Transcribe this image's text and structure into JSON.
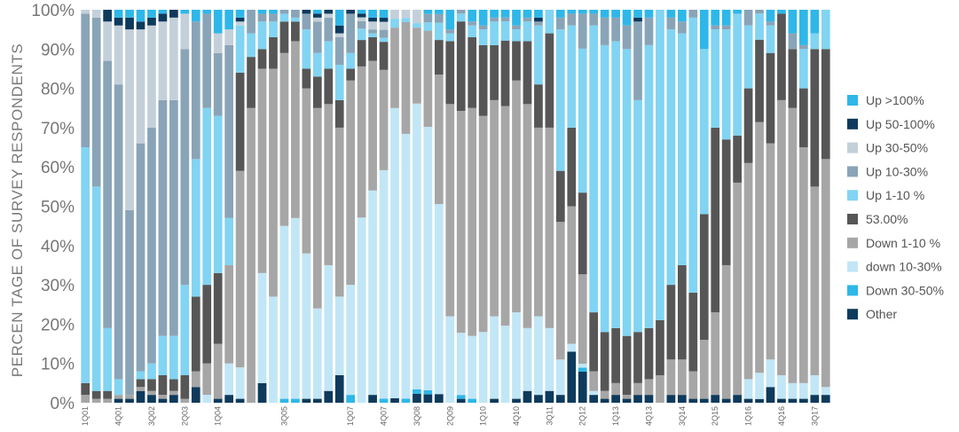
{
  "chart_data": {
    "type": "bar",
    "stacked": true,
    "normalized": true,
    "ylabel": "PERCEN TAGE OF SURVEY RESPONDENTS",
    "ylim": [
      0,
      100
    ],
    "y_ticks": [
      "0%",
      "10%",
      "20%",
      "30%",
      "40%",
      "50%",
      "60%",
      "70%",
      "80%",
      "90%",
      "100%"
    ],
    "legend_position": "right",
    "categories": [
      "1Q01",
      "2Q01",
      "3Q01",
      "4Q01",
      "1Q02",
      "2Q02",
      "3Q02",
      "4Q02",
      "1Q03",
      "2Q03",
      "3Q03",
      "4Q03",
      "1Q04",
      "2Q04",
      "3Q04",
      "4Q04",
      "1Q05",
      "2Q05",
      "3Q05",
      "4Q05",
      "1Q06",
      "2Q06",
      "3Q06",
      "4Q06",
      "1Q07",
      "2Q07",
      "3Q07",
      "4Q07",
      "1Q08",
      "2Q08",
      "3Q08",
      "4Q08",
      "1Q09",
      "2Q09",
      "3Q09",
      "4Q09",
      "1Q10",
      "2Q10",
      "3Q10",
      "4Q10",
      "1Q11",
      "2Q11",
      "3Q11",
      "4Q11",
      "1Q12",
      "2Q12",
      "3Q12",
      "4Q12",
      "1Q13",
      "2Q13",
      "3Q13",
      "4Q13",
      "1Q14",
      "2Q14",
      "3Q14",
      "4Q14",
      "1Q15",
      "2Q15",
      "3Q15",
      "4Q15",
      "1Q16",
      "2Q16",
      "3Q16",
      "4Q16",
      "1Q17",
      "2Q17",
      "3Q17",
      "4Q17"
    ],
    "x_tick_labels": [
      "1Q01",
      "4Q01",
      "3Q02",
      "2Q03",
      "1Q04",
      "3Q05",
      "1Q07",
      "4Q07",
      "3Q08",
      "2Q09",
      "1Q10",
      "4Q10",
      "3Q11",
      "2Q12",
      "1Q13",
      "4Q13",
      "3Q14",
      "2Q15",
      "1Q16",
      "4Q16",
      "3Q17"
    ],
    "series": [
      {
        "name": "Other",
        "color": "#0e3a5c",
        "values": [
          0,
          0,
          0,
          1,
          1,
          3,
          2,
          1,
          2,
          0,
          4,
          0,
          1,
          2,
          1,
          0,
          5,
          0,
          0,
          0,
          1,
          1,
          3,
          7,
          0,
          0,
          2,
          0,
          1,
          0,
          2,
          2,
          2,
          0,
          1,
          0,
          0,
          1,
          0,
          1,
          3,
          2,
          3,
          2,
          13,
          8,
          2,
          1,
          2,
          1,
          2,
          2,
          0,
          2,
          2,
          1,
          1,
          2,
          1,
          2,
          1,
          1,
          4,
          1,
          1,
          1,
          2,
          2
        ]
      },
      {
        "name": "Down 30-50%",
        "color": "#2eb7e8",
        "values": [
          0,
          0,
          0,
          0,
          0,
          0,
          0,
          0,
          0,
          0,
          0,
          0,
          0,
          0,
          0,
          0,
          0,
          0,
          1,
          1,
          0,
          0,
          0,
          0,
          2,
          0,
          0,
          1,
          0,
          1,
          1,
          1,
          0,
          0,
          1,
          1,
          0,
          0,
          0,
          0,
          0,
          0,
          0,
          0,
          0,
          1,
          0,
          0,
          0,
          0,
          0,
          0,
          0,
          0,
          0,
          0,
          0,
          0,
          0,
          0,
          0,
          0,
          0,
          0,
          0,
          0,
          0,
          0
        ]
      },
      {
        "name": "down 10-30%",
        "color": "#c1e6f6",
        "values": [
          0,
          0,
          0,
          0,
          0,
          0,
          0,
          0,
          0,
          0,
          0,
          2,
          0,
          8,
          8,
          0,
          28,
          27,
          44,
          46,
          37,
          23,
          32,
          20,
          28,
          49,
          52,
          57,
          65,
          64,
          64,
          63,
          44,
          22,
          16,
          16,
          18,
          21,
          20,
          22,
          16,
          20,
          16,
          9,
          2,
          1,
          1,
          0,
          0,
          0,
          0,
          0,
          0,
          0,
          0,
          0,
          0,
          0,
          0,
          0,
          5,
          7,
          7,
          6,
          4,
          4,
          5,
          2
        ]
      },
      {
        "name": "Down 1-10 %",
        "color": "#a6a6a6",
        "values": [
          2,
          1,
          1,
          1,
          1,
          1,
          1,
          1,
          1,
          1,
          4,
          8,
          14,
          25,
          50,
          75,
          52,
          58,
          44,
          45,
          42,
          51,
          41,
          43,
          52,
          40,
          33,
          25,
          18,
          27,
          17,
          23,
          30,
          54,
          57,
          58,
          55,
          55,
          57,
          59,
          57,
          48,
          51,
          35,
          35,
          23,
          5,
          2,
          3,
          1,
          3,
          4,
          7,
          9,
          9,
          7,
          15,
          21,
          34,
          54,
          55,
          67,
          55,
          70,
          70,
          60,
          48,
          58
        ]
      },
      {
        "name": "53.00%",
        "color": "#565656",
        "values": [
          3,
          2,
          2,
          0,
          0,
          2,
          3,
          5,
          3,
          6,
          19,
          20,
          18,
          0,
          25,
          13,
          5,
          8,
          8,
          5,
          5,
          8,
          9,
          7,
          3,
          7,
          6,
          7,
          0,
          0,
          0,
          0,
          8,
          16,
          23,
          18,
          18,
          14,
          17,
          10,
          16,
          11,
          24,
          13,
          20,
          21,
          15,
          15,
          14,
          15,
          13,
          13,
          14,
          19,
          24,
          20,
          32,
          47,
          32,
          12,
          19,
          22,
          23,
          22,
          15,
          15,
          35,
          28
        ]
      },
      {
        "name": "Up 1-10 %",
        "color": "#81d4f2",
        "values": [
          60,
          52,
          16,
          4,
          0,
          2,
          4,
          10,
          11,
          23,
          35,
          45,
          40,
          12,
          12,
          6,
          7,
          4,
          2,
          1,
          10,
          6,
          7,
          9,
          4,
          3,
          1,
          1,
          2,
          1,
          1,
          2,
          4,
          2,
          2,
          3,
          4,
          6,
          5,
          3,
          5,
          15,
          6,
          36,
          26,
          37,
          73,
          73,
          73,
          73,
          59,
          72,
          79,
          65,
          59,
          70,
          42,
          25,
          28,
          31,
          16,
          7,
          7,
          0,
          0,
          10,
          4,
          10
        ]
      },
      {
        "name": "Up 10-30%",
        "color": "#8aa4b7",
        "values": [
          34,
          43,
          68,
          75,
          47,
          58,
          60,
          60,
          60,
          60,
          35,
          24,
          16,
          44,
          0,
          6,
          2,
          2,
          1,
          2,
          4,
          8,
          6,
          7,
          10,
          2,
          1,
          2,
          0,
          0,
          0,
          2,
          2,
          1,
          1,
          1,
          1,
          1,
          1,
          1,
          1,
          1,
          0,
          3,
          3,
          9,
          3,
          7,
          6,
          6,
          20,
          7,
          0,
          3,
          3,
          2,
          0,
          1,
          1,
          0,
          4,
          1,
          1,
          0,
          4,
          1,
          0,
          0
        ]
      },
      {
        "name": "Up 30-50%",
        "color": "#c3d0da",
        "values": [
          1,
          2,
          10,
          15,
          46,
          29,
          26,
          20,
          21,
          9,
          0,
          0,
          5,
          4,
          1,
          0,
          0,
          0,
          0,
          0,
          0,
          1,
          1,
          1,
          0,
          1,
          2,
          2,
          2,
          2,
          3,
          0,
          0,
          0,
          0,
          0,
          0,
          0,
          0,
          0,
          0,
          0,
          0,
          0,
          0,
          0,
          0,
          0,
          0,
          0,
          0,
          0,
          0,
          0,
          0,
          0,
          0,
          0,
          0,
          0,
          0,
          0,
          0,
          0,
          0,
          0,
          0,
          0
        ]
      },
      {
        "name": "Up 50-100%",
        "color": "#0e3a5c",
        "values": [
          0,
          0,
          3,
          2,
          3,
          2,
          2,
          2,
          2,
          0,
          0,
          0,
          0,
          0,
          1,
          0,
          0,
          0,
          0,
          0,
          1,
          1,
          1,
          2,
          1,
          1,
          1,
          1,
          0,
          0,
          0,
          0,
          0,
          0,
          0,
          0,
          0,
          0,
          0,
          0,
          0,
          1,
          0,
          0,
          0,
          0,
          0,
          0,
          0,
          0,
          1,
          0,
          0,
          0,
          0,
          0,
          0,
          0,
          0,
          0,
          0,
          0,
          0,
          0,
          0,
          0,
          0,
          0
        ]
      },
      {
        "name": "Up >100%",
        "color": "#2eb7e8",
        "values": [
          0,
          0,
          0,
          2,
          2,
          3,
          2,
          1,
          0,
          1,
          3,
          1,
          6,
          5,
          2,
          0,
          1,
          1,
          0,
          0,
          0,
          1,
          0,
          4,
          0,
          1,
          2,
          2,
          0,
          0,
          0,
          1,
          1,
          5,
          0,
          3,
          4,
          2,
          2,
          4,
          2,
          2,
          0,
          2,
          1,
          1,
          1,
          2,
          2,
          4,
          2,
          2,
          0,
          2,
          3,
          0,
          10,
          4,
          4,
          1,
          0,
          0,
          3,
          1,
          6,
          9,
          6,
          0
        ]
      }
    ]
  }
}
